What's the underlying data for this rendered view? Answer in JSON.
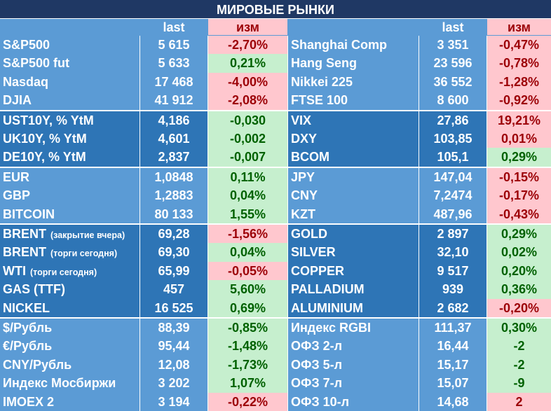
{
  "title": "МИРОВЫЕ РЫНКИ",
  "headers": {
    "last": "last",
    "change": "изм"
  },
  "colors": {
    "title_bg": "#1f3864",
    "light_bg": "#5b9bd5",
    "dark_bg": "#2e75b6",
    "pos_bg": "#c6efce",
    "pos_fg": "#006100",
    "neg_bg": "#ffc7ce",
    "neg_fg": "#9c0006"
  },
  "groups": [
    {
      "shade": "light",
      "rows": [
        {
          "left": {
            "name": "S&P500",
            "last": "5 615",
            "chg": "-2,70%",
            "dir": "neg"
          },
          "right": {
            "name": "Shanghai Comp",
            "last": "3 351",
            "chg": "-0,47%",
            "dir": "neg"
          }
        },
        {
          "left": {
            "name": "S&P500 fut",
            "last": "5 633",
            "chg": "0,21%",
            "dir": "pos"
          },
          "right": {
            "name": "Hang Seng",
            "last": "23 596",
            "chg": "-0,78%",
            "dir": "neg"
          }
        },
        {
          "left": {
            "name": "Nasdaq",
            "last": "17 468",
            "chg": "-4,00%",
            "dir": "neg"
          },
          "right": {
            "name": "Nikkei 225",
            "last": "36 552",
            "chg": "-1,28%",
            "dir": "neg"
          }
        },
        {
          "left": {
            "name": "DJIA",
            "last": "41 912",
            "chg": "-2,08%",
            "dir": "neg"
          },
          "right": {
            "name": "FTSE 100",
            "last": "8 600",
            "chg": "-0,92%",
            "dir": "neg"
          }
        }
      ]
    },
    {
      "shade": "dark",
      "rows": [
        {
          "left": {
            "name": "UST10Y, % YtM",
            "last": "4,186",
            "chg": "-0,030",
            "dir": "pos"
          },
          "right": {
            "name": "VIX",
            "last": "27,86",
            "chg": "19,21%",
            "dir": "neg"
          }
        },
        {
          "left": {
            "name": "UK10Y, % YtM",
            "last": "4,601",
            "chg": "-0,002",
            "dir": "pos"
          },
          "right": {
            "name": "DXY",
            "last": "103,85",
            "chg": "0,01%",
            "dir": "neg"
          }
        },
        {
          "left": {
            "name": "DE10Y, % YtM",
            "last": "2,837",
            "chg": "-0,007",
            "dir": "pos"
          },
          "right": {
            "name": "BCOM",
            "last": "105,1",
            "chg": "0,29%",
            "dir": "pos"
          }
        }
      ]
    },
    {
      "shade": "light",
      "rows": [
        {
          "left": {
            "name": "EUR",
            "last": "1,0848",
            "chg": "0,11%",
            "dir": "pos"
          },
          "right": {
            "name": "JPY",
            "last": "147,04",
            "chg": "-0,15%",
            "dir": "neg"
          }
        },
        {
          "left": {
            "name": "GBP",
            "last": "1,2883",
            "chg": "0,04%",
            "dir": "pos"
          },
          "right": {
            "name": "CNY",
            "last": "7,2474",
            "chg": "-0,17%",
            "dir": "neg"
          }
        },
        {
          "left": {
            "name": "BITCOIN",
            "last": "80 133",
            "chg": "1,55%",
            "dir": "pos"
          },
          "right": {
            "name": "KZT",
            "last": "487,96",
            "chg": "-0,43%",
            "dir": "neg"
          }
        }
      ]
    },
    {
      "shade": "dark",
      "rows": [
        {
          "left": {
            "name": "BRENT",
            "note": "(закрытие вчера)",
            "last": "69,28",
            "chg": "-1,56%",
            "dir": "neg"
          },
          "right": {
            "name": "GOLD",
            "last": "2 897",
            "chg": "0,29%",
            "dir": "pos"
          }
        },
        {
          "left": {
            "name": "BRENT",
            "note": "(торги сегодня)",
            "last": "69,30",
            "chg": "0,04%",
            "dir": "pos"
          },
          "right": {
            "name": "SILVER",
            "last": "32,10",
            "chg": "0,02%",
            "dir": "pos"
          }
        },
        {
          "left": {
            "name": "WTI",
            "note": "(торги сегодня)",
            "last": "65,99",
            "chg": "-0,05%",
            "dir": "neg"
          },
          "right": {
            "name": "COPPER",
            "last": "9 517",
            "chg": "0,20%",
            "dir": "pos"
          }
        },
        {
          "left": {
            "name": "GAS (TTF)",
            "last": "457",
            "chg": "5,60%",
            "dir": "pos"
          },
          "right": {
            "name": "PALLADIUM",
            "last": "939",
            "chg": "0,36%",
            "dir": "pos"
          }
        },
        {
          "left": {
            "name": "NICKEL",
            "last": "16 525",
            "chg": "0,69%",
            "dir": "pos"
          },
          "right": {
            "name": "ALUMINIUM",
            "last": "2 682",
            "chg": "-0,20%",
            "dir": "neg"
          }
        }
      ]
    },
    {
      "shade": "light",
      "rows": [
        {
          "left": {
            "name": "$/Рубль",
            "last": "88,39",
            "chg": "-0,85%",
            "dir": "pos"
          },
          "right": {
            "name": "Индекс RGBI",
            "last": "111,37",
            "chg": "0,30%",
            "dir": "pos"
          }
        },
        {
          "left": {
            "name": "€/Рубль",
            "last": "95,44",
            "chg": "-1,48%",
            "dir": "pos"
          },
          "right": {
            "name": "ОФЗ 2-л",
            "last": "16,44",
            "chg": "-2",
            "dir": "pos"
          }
        },
        {
          "left": {
            "name": "CNY/Рубль",
            "last": "12,08",
            "chg": "-1,73%",
            "dir": "pos"
          },
          "right": {
            "name": "ОФЗ 5-л",
            "last": "15,17",
            "chg": "-2",
            "dir": "pos"
          }
        },
        {
          "left": {
            "name": "Индекс Мосбиржи",
            "last": "3 202",
            "chg": "1,07%",
            "dir": "pos"
          },
          "right": {
            "name": "ОФЗ 7-л",
            "last": "15,07",
            "chg": "-9",
            "dir": "pos"
          }
        },
        {
          "left": {
            "name": "IMOEX 2",
            "last": "3 194",
            "chg": "-0,22%",
            "dir": "neg"
          },
          "right": {
            "name": "ОФЗ 10-л",
            "last": "14,68",
            "chg": "2",
            "dir": "neg"
          }
        }
      ]
    }
  ]
}
